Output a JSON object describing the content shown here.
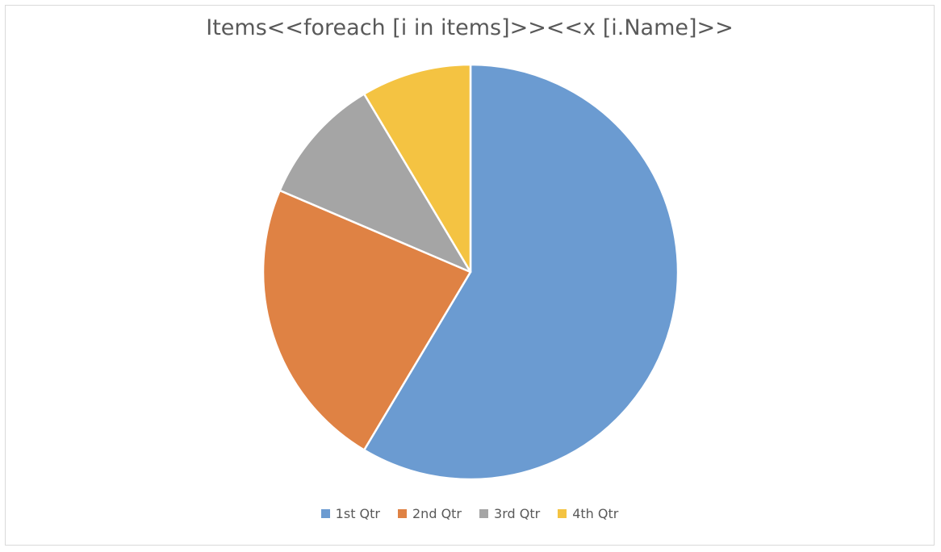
{
  "chart_data": {
    "type": "pie",
    "title": "Items<<foreach [i in items]>><<x [i.Name]>>",
    "categories": [
      "1st Qtr",
      "2nd Qtr",
      "3rd Qtr",
      "4th Qtr"
    ],
    "values": [
      8.2,
      3.2,
      1.4,
      1.2
    ],
    "colors": [
      "#6b9bd1",
      "#df8244",
      "#a5a5a5",
      "#f4c342"
    ],
    "legend_position": "bottom"
  }
}
